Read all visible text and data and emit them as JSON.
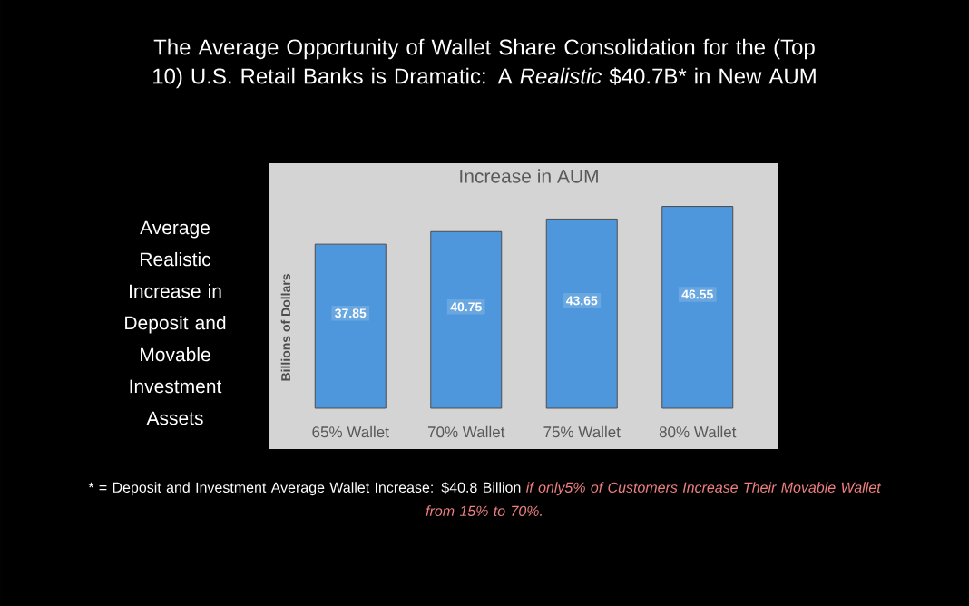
{
  "chart_data": {
    "type": "bar",
    "title": "The Average Opportunity of Wallet Share Consolidation for the (Top 10) U.S. Retail Banks is Dramatic: A *Realistic* $40.7B* in New AUM",
    "subtitle": "Increase in AUM",
    "ylabel": "Billions of Dollars",
    "categories": [
      "65% Wallet",
      "70% Wallet",
      "75% Wallet",
      "80% Wallet"
    ],
    "values": [
      37.85,
      40.75,
      43.65,
      46.55
    ],
    "value_labels": [
      "37.85",
      "40.75",
      "43.65",
      "46.55"
    ],
    "color": "#4f97dc",
    "annotations": [
      "Average Realistic Increase in Deposit and Movable Investment Assets",
      "* = Deposit and Investment Average Wallet Increase: $40.8 Billion",
      "if only5% of Customers Increase Their Movable Wallet from 15% to 70%."
    ]
  }
}
